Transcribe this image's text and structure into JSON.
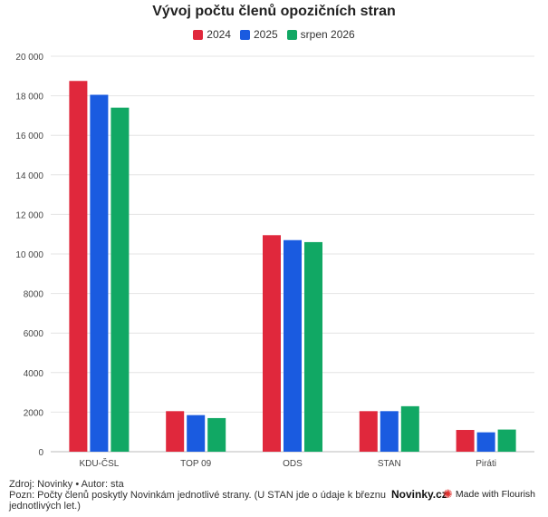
{
  "chart_data": {
    "type": "bar",
    "title": "Vývoj počtu členů opozičních stran",
    "categories": [
      "KDU-ČSL",
      "TOP 09",
      "ODS",
      "STAN",
      "Piráti"
    ],
    "series": [
      {
        "name": "2024",
        "color": "#e0283c",
        "values": [
          18750,
          2050,
          10950,
          2050,
          1100
        ]
      },
      {
        "name": "2025",
        "color": "#1a5be0",
        "values": [
          18050,
          1850,
          10700,
          2050,
          980
        ]
      },
      {
        "name": "srpen 2026",
        "color": "#11a864",
        "values": [
          17400,
          1700,
          10600,
          2300,
          1120
        ]
      }
    ],
    "ylim": [
      0,
      20000
    ],
    "yticks": [
      0,
      2000,
      4000,
      6000,
      8000,
      10000,
      12000,
      14000,
      16000,
      18000,
      20000
    ],
    "ytick_labels": [
      "0",
      "2000",
      "4000",
      "6000",
      "8000",
      "10 000",
      "12 000",
      "14 000",
      "16 000",
      "18 000",
      "20 000"
    ],
    "grid": true,
    "legend_position": "top-center"
  },
  "footer": {
    "source": "Zdroj: Novinky • Autor: sta",
    "note": "Pozn: Počty členů poskytly Novinkám jednotlivé strany. (U STAN jde o údaje k březnu jednotlivých let.)"
  },
  "brand": "Novinky.cz",
  "flourish": "Made with Flourish",
  "flourish_icon": "flourish-star-icon"
}
